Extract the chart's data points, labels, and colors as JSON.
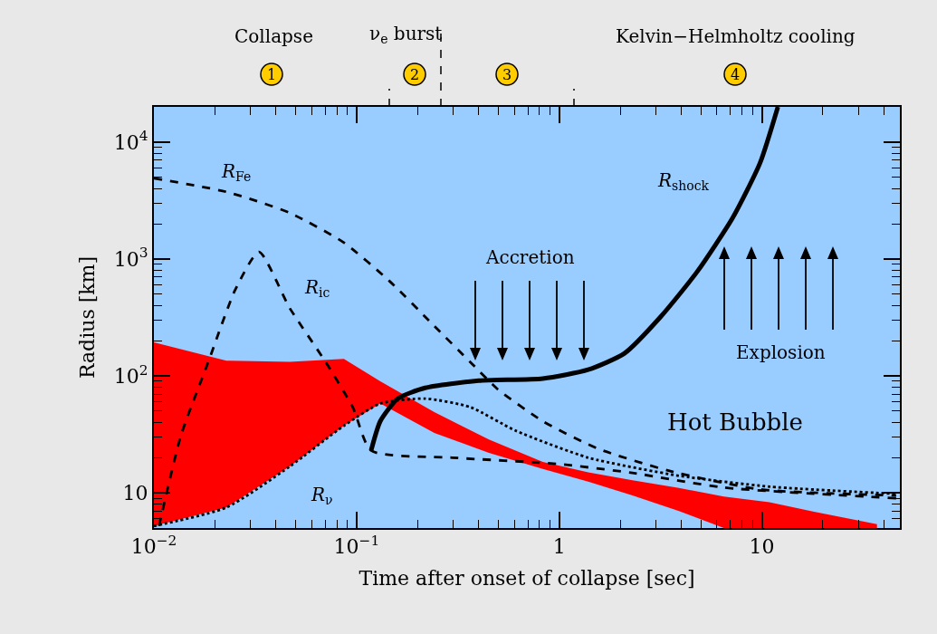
{
  "chart_data": {
    "type": "line",
    "xlabel": "Time after onset of collapse [sec]",
    "ylabel": "Radius [km]",
    "log": "xy",
    "xlim": [
      0.01,
      48
    ],
    "ylim": [
      5,
      20000
    ],
    "xticks": [
      {
        "value": 0.01,
        "label": "10$^{−2}$"
      },
      {
        "value": 0.1,
        "label": "10$^{−1}$"
      },
      1,
      10
    ],
    "yticks": [
      10,
      {
        "value": 100,
        "label": "10$^{2}$"
      },
      {
        "value": 1000,
        "label": "10$^{3}$"
      },
      {
        "value": 10000,
        "label": "10$^{4}$"
      }
    ],
    "grid": false,
    "legend": false,
    "marker": "none",
    "series": [
      {
        "type": "area",
        "color": "#ff0000",
        "x": [
          0.01,
          0.0228,
          0.0468,
          0.0866,
          0.131,
          0.242,
          0.45,
          0.83,
          1.39,
          2.3,
          3.9,
          6.5,
          10.9,
          18.1,
          37
        ],
        "values": [
          null,
          null,
          null,
          null,
          null,
          null,
          null,
          null,
          null,
          null,
          null,
          null,
          null,
          null,
          null
        ],
        "lower": [
          5.2,
          7.5,
          16.8,
          37.5,
          58,
          32.5,
          22,
          16,
          12.5,
          9.5,
          7,
          5,
          5,
          5,
          5
        ],
        "upper": [
          194,
          135,
          132,
          140,
          90,
          49,
          28.6,
          18.4,
          15,
          12.8,
          11,
          9.3,
          8.3,
          6.9,
          5.4
        ]
      },
      {
        "name": "R$_{Fe}$",
        "color": "#000000",
        "line_style": "dashed",
        "x": [
          0.01,
          0.0228,
          0.0468,
          0.0866,
          0.145,
          0.242,
          0.365,
          0.497,
          0.83,
          1.54,
          3.5,
          9.8,
          46
        ],
        "values": [
          4900,
          3750,
          2480,
          1380,
          650,
          267,
          131,
          77,
          41,
          24,
          15.4,
          10.7,
          9.5
        ]
      },
      {
        "name": "R$_{ic}$",
        "color": "#000000",
        "line_style": "dashed",
        "x": [
          0.0106,
          0.0136,
          0.0185,
          0.0252,
          0.033,
          0.0468,
          0.0705,
          0.096,
          0.118,
          0.297,
          0.97,
          2.3,
          6.5,
          46
        ],
        "values": [
          5.2,
          31,
          130,
          545,
          1150,
          380,
          131,
          53.6,
          23,
          20,
          17.7,
          14.8,
          11.1,
          9.0
        ]
      },
      {
        "name": "R$_{ν}$",
        "color": "#000000",
        "line_style": "dotted",
        "x": [
          0.01,
          0.0228,
          0.0468,
          0.0866,
          0.131,
          0.218,
          0.365,
          0.61,
          1.39,
          3.9,
          10.9,
          46
        ],
        "values": [
          5.2,
          7.5,
          16.8,
          37.5,
          58,
          64,
          54,
          34,
          20,
          14,
          11.3,
          9.8
        ]
      },
      {
        "name": "R$_{shock}$",
        "color": "#000000",
        "line_style": "solid",
        "x": [
          0.118,
          0.131,
          0.16,
          0.218,
          0.4,
          0.83,
          1.39,
          2.1,
          3.16,
          4.8,
          7.2,
          9.8,
          12.0
        ],
        "values": [
          23,
          41,
          64,
          79,
          91,
          95,
          113,
          156,
          319,
          780,
          2270,
          6630,
          20000
        ]
      }
    ],
    "annotations": [
      "Collapse",
      "ν$_{e}$ burst",
      "Kelvin−Helmholtz cooling",
      "1",
      "2",
      "3",
      "4",
      "Accretion",
      "Explosion",
      "Hot Bubble"
    ]
  }
}
